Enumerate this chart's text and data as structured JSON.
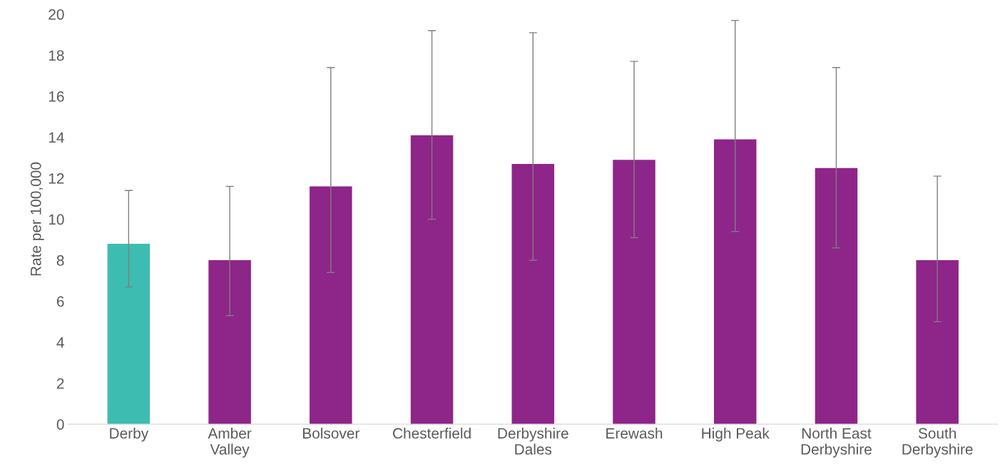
{
  "chart_data": {
    "type": "bar",
    "ylabel": "Rate per 100,000",
    "categories": [
      "Derby",
      "Amber\nValley",
      "Bolsover",
      "Chesterfield",
      "Derbyshire\nDales",
      "Erewash",
      "High Peak",
      "North East\nDerbyshire",
      "South\nDerbyshire"
    ],
    "values": [
      8.8,
      8.0,
      11.6,
      14.1,
      12.7,
      12.9,
      13.9,
      12.5,
      8.0
    ],
    "colors": [
      "#3dbdb1",
      "#8e2589",
      "#8e2589",
      "#8e2589",
      "#8e2589",
      "#8e2589",
      "#8e2589",
      "#8e2589",
      "#8e2589"
    ],
    "errors": [
      [
        6.7,
        11.4
      ],
      [
        5.3,
        11.6
      ],
      [
        7.4,
        17.4
      ],
      [
        10.0,
        19.2
      ],
      [
        8.0,
        19.1
      ],
      [
        9.1,
        17.7
      ],
      [
        9.4,
        19.7
      ],
      [
        8.6,
        17.4
      ],
      [
        5.0,
        12.1
      ]
    ],
    "ylim": [
      0,
      20
    ],
    "yticks": [
      0,
      2,
      4,
      6,
      8,
      10,
      12,
      14,
      16,
      18,
      20
    ],
    "grid": false,
    "legend": false
  }
}
